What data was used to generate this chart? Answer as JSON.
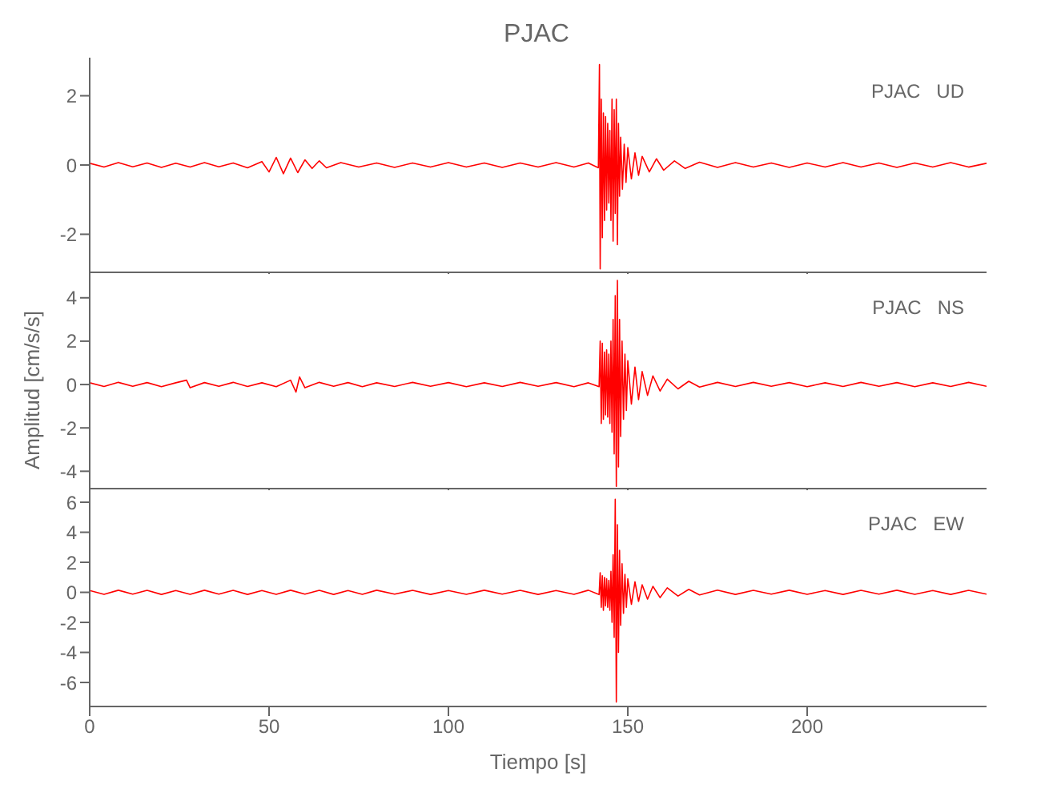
{
  "chart_data": [
    {
      "type": "line",
      "title": "PJAC",
      "annotations": [
        "PJAC   UD"
      ],
      "xlim": [
        0,
        250
      ],
      "xticks": [
        0,
        50,
        100,
        150,
        200
      ],
      "ylim": [
        -3.1,
        3.1
      ],
      "yticks": [
        -2,
        0,
        2
      ],
      "tick_labels": "y",
      "marker": "none",
      "series": [
        {
          "color": "#ff0000",
          "x": [
            0,
            4,
            8,
            12,
            16,
            20,
            24,
            28,
            32,
            36,
            40,
            44,
            48,
            50,
            52,
            54,
            56,
            58,
            60,
            62,
            64,
            66,
            70,
            75,
            80,
            85,
            90,
            95,
            100,
            105,
            110,
            115,
            120,
            125,
            130,
            135,
            139,
            141.8,
            142.1,
            142.3,
            142.6,
            142.9,
            143.2,
            143.5,
            143.8,
            144.1,
            144.4,
            144.7,
            145,
            145.3,
            145.6,
            145.9,
            146.2,
            146.5,
            146.8,
            147.1,
            147.4,
            147.7,
            148,
            148.5,
            149,
            149.5,
            150,
            151,
            152,
            153,
            154,
            156,
            158,
            160,
            163,
            166,
            170,
            175,
            180,
            185,
            190,
            195,
            200,
            205,
            210,
            215,
            220,
            225,
            230,
            235,
            240,
            245,
            250
          ],
          "values": [
            0.05,
            -0.06,
            0.07,
            -0.05,
            0.06,
            -0.07,
            0.05,
            -0.06,
            0.07,
            -0.05,
            0.06,
            -0.08,
            0.1,
            -0.2,
            0.22,
            -0.25,
            0.2,
            -0.22,
            0.15,
            -0.1,
            0.12,
            -0.08,
            0.07,
            -0.06,
            0.06,
            -0.07,
            0.06,
            -0.06,
            0.07,
            -0.06,
            0.06,
            -0.07,
            0.06,
            -0.06,
            0.07,
            -0.06,
            0.06,
            -0.08,
            2.9,
            -3.0,
            1.9,
            -2.1,
            1.5,
            -1.6,
            1.4,
            -1.3,
            1.2,
            -1.1,
            1.0,
            -1.6,
            1.9,
            -2.2,
            1.6,
            -1.4,
            1.9,
            -2.3,
            1.2,
            -0.9,
            0.8,
            -0.7,
            0.6,
            -0.5,
            0.5,
            -0.4,
            0.35,
            -0.3,
            0.25,
            -0.2,
            0.18,
            -0.15,
            0.12,
            -0.1,
            0.08,
            -0.07,
            0.07,
            -0.06,
            0.06,
            -0.07,
            0.06,
            -0.06,
            0.07,
            -0.06,
            0.06,
            -0.07,
            0.06,
            -0.06,
            0.07,
            -0.06,
            0.05
          ]
        }
      ]
    },
    {
      "type": "line",
      "ylabel": "Amplitud [cm/s/s]",
      "annotations": [
        "PJAC   NS"
      ],
      "xlim": [
        0,
        250
      ],
      "xticks": [
        0,
        50,
        100,
        150,
        200
      ],
      "ylim": [
        -4.8,
        5.1
      ],
      "yticks": [
        -4,
        -2,
        0,
        2,
        4
      ],
      "tick_labels": "y",
      "marker": "none",
      "series": [
        {
          "color": "#ff0000",
          "x": [
            0,
            4,
            8,
            12,
            16,
            20,
            24,
            27,
            28,
            32,
            36,
            40,
            44,
            48,
            52,
            56,
            57.5,
            58.5,
            60,
            64,
            68,
            72,
            76,
            80,
            85,
            90,
            95,
            100,
            105,
            110,
            115,
            120,
            125,
            130,
            135,
            139,
            142,
            142.3,
            142.6,
            142.9,
            143.2,
            143.5,
            143.8,
            144.1,
            144.4,
            144.7,
            145,
            145.3,
            145.6,
            145.9,
            146.2,
            146.5,
            146.8,
            147.1,
            147.4,
            147.7,
            148,
            148.4,
            148.8,
            149.2,
            149.6,
            150,
            151,
            152,
            153,
            154,
            155.5,
            157,
            159,
            161,
            164,
            167,
            170,
            175,
            180,
            185,
            190,
            195,
            200,
            205,
            210,
            215,
            220,
            225,
            230,
            235,
            240,
            245,
            250
          ],
          "values": [
            0.08,
            -0.09,
            0.1,
            -0.08,
            0.09,
            -0.1,
            0.08,
            0.2,
            -0.15,
            0.09,
            -0.08,
            0.1,
            -0.09,
            0.08,
            -0.1,
            0.2,
            -0.35,
            0.35,
            -0.15,
            0.1,
            -0.08,
            0.09,
            -0.1,
            0.08,
            -0.09,
            0.1,
            -0.08,
            0.09,
            -0.1,
            0.08,
            -0.09,
            0.1,
            -0.08,
            0.09,
            -0.1,
            0.08,
            -0.1,
            2.0,
            -1.8,
            1.9,
            -1.6,
            1.5,
            -1.4,
            1.6,
            -1.5,
            1.4,
            -1.8,
            2.0,
            -2.2,
            3.0,
            -3.2,
            4.1,
            -4.7,
            4.8,
            -3.8,
            3.0,
            -2.4,
            2.0,
            -1.6,
            1.4,
            -1.2,
            1.1,
            -0.9,
            0.8,
            -0.7,
            0.6,
            -0.5,
            0.4,
            -0.3,
            0.25,
            -0.2,
            0.15,
            -0.12,
            0.1,
            -0.09,
            0.1,
            -0.08,
            0.09,
            -0.1,
            0.08,
            -0.09,
            0.1,
            -0.08,
            0.09,
            -0.1,
            0.08,
            -0.09,
            0.1,
            -0.08
          ]
        }
      ]
    },
    {
      "type": "line",
      "xlabel": "Tiempo [s]",
      "annotations": [
        "PJAC   EW"
      ],
      "xlim": [
        0,
        250
      ],
      "xticks": [
        0,
        50,
        100,
        150,
        200
      ],
      "ylim": [
        -7.6,
        6.8
      ],
      "yticks": [
        -6,
        -4,
        -2,
        0,
        2,
        4,
        6
      ],
      "marker": "none",
      "series": [
        {
          "color": "#ff0000",
          "x": [
            0,
            4,
            8,
            12,
            16,
            20,
            24,
            28,
            32,
            36,
            40,
            44,
            48,
            52,
            56,
            60,
            64,
            68,
            72,
            76,
            80,
            85,
            90,
            95,
            100,
            105,
            110,
            115,
            120,
            125,
            130,
            135,
            139,
            142,
            142.3,
            142.6,
            142.9,
            143.2,
            143.5,
            143.8,
            144.1,
            144.4,
            144.7,
            145,
            145.3,
            145.6,
            145.9,
            146.2,
            146.5,
            146.8,
            147.1,
            147.4,
            147.7,
            148,
            148.4,
            148.8,
            149.2,
            149.6,
            150,
            151,
            152,
            153,
            154,
            155.5,
            157,
            159,
            161,
            164,
            167,
            170,
            175,
            180,
            185,
            190,
            195,
            200,
            205,
            210,
            215,
            220,
            225,
            230,
            235,
            240,
            245,
            250
          ],
          "values": [
            0.12,
            -0.13,
            0.14,
            -0.12,
            0.13,
            -0.14,
            0.12,
            -0.13,
            0.14,
            -0.12,
            0.13,
            -0.14,
            0.12,
            -0.13,
            0.14,
            -0.12,
            0.13,
            -0.14,
            0.12,
            -0.13,
            0.14,
            -0.12,
            0.13,
            -0.14,
            0.12,
            -0.13,
            0.14,
            -0.12,
            0.13,
            -0.14,
            0.12,
            -0.13,
            0.14,
            -0.15,
            1.3,
            -1.0,
            1.1,
            -1.2,
            1.0,
            -0.9,
            0.9,
            -1.0,
            0.8,
            -1.2,
            1.4,
            -2.0,
            2.5,
            -3.0,
            6.2,
            -7.3,
            4.5,
            -4.0,
            2.8,
            -2.2,
            1.9,
            -1.4,
            1.2,
            -1.0,
            0.9,
            -0.8,
            0.7,
            -0.6,
            0.5,
            -0.45,
            0.4,
            -0.35,
            0.3,
            -0.25,
            0.2,
            -0.17,
            0.15,
            -0.14,
            0.13,
            -0.12,
            0.14,
            -0.13,
            0.12,
            -0.14,
            0.13,
            -0.12,
            0.14,
            -0.13,
            0.12,
            -0.14,
            0.13,
            -0.12
          ]
        }
      ]
    }
  ]
}
